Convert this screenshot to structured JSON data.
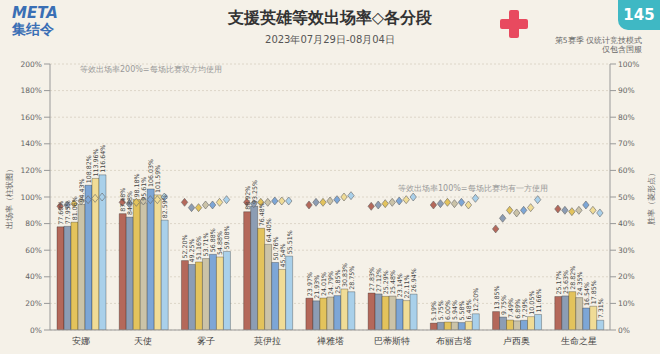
{
  "chart_data": {
    "type": "bar",
    "title": "支援英雄等效出场率◇各分段",
    "subtitle": "2023年07月29日-08月04日",
    "logo_text": [
      "META",
      "集结令"
    ],
    "issue": "145",
    "notes": [
      "第5赛季 仅统计竞技模式",
      "仅包含国服"
    ],
    "annotations": [
      "等效出场率200%=每场比赛双方均使用",
      "等效出场率100%=每场比赛均有一方使用"
    ],
    "y_label": "出场率（柱状图）",
    "y2_label": "胜率（菱形点）",
    "categories": [
      "安娜",
      "天使",
      "雾子",
      "莫伊拉",
      "禅雅塔",
      "巴蒂斯特",
      "布丽吉塔",
      "卢西奥",
      "生命之星"
    ],
    "ylim": [
      0,
      200
    ],
    "yticks": [
      {
        "value": 0,
        "label": "0%"
      },
      {
        "value": 20,
        "label": "20%"
      },
      {
        "value": 40,
        "label": "40%"
      },
      {
        "value": 60,
        "label": "60%"
      },
      {
        "value": 80,
        "label": "80%"
      },
      {
        "value": 100,
        "label": "100%"
      },
      {
        "value": 120,
        "label": "120%"
      },
      {
        "value": 140,
        "label": "140%"
      },
      {
        "value": 160,
        "label": "160%"
      },
      {
        "value": 180,
        "label": "180%"
      },
      {
        "value": 200,
        "label": "200%"
      }
    ],
    "y2lim": [
      0,
      100
    ],
    "y2ticks": [
      {
        "value": 0,
        "label": "0%"
      },
      {
        "value": 10,
        "label": "10%"
      },
      {
        "value": 20,
        "label": "20%"
      },
      {
        "value": 30,
        "label": "30%"
      },
      {
        "value": 40,
        "label": "40%"
      },
      {
        "value": 50,
        "label": "50%"
      },
      {
        "value": 60,
        "label": "60%"
      },
      {
        "value": 70,
        "label": "70%"
      },
      {
        "value": 80,
        "label": "80%"
      },
      {
        "value": 90,
        "label": "90%"
      },
      {
        "value": 100,
        "label": "100%"
      }
    ],
    "grid": true,
    "data_labels": true,
    "series": [
      {
        "type": "bar",
        "color": "#b4685a",
        "values": [
          77.6,
          87.48,
          52.2,
          88.92,
          23.97,
          27.83,
          5.19,
          13.85,
          25.17
        ],
        "value_labels": [
          "77.60%",
          "87.48%",
          "52.20%",
          "88.92%",
          "23.97%",
          "27.83%",
          "5.19%",
          "13.85%",
          "25.17%"
        ]
      },
      {
        "type": "bar",
        "color": "#8c9db4",
        "values": [
          77.95,
          84.88,
          49.25,
          93.25,
          21.93,
          27.12,
          5.75,
          9.75,
          25.63
        ],
        "value_labels": [
          "77.95%",
          "84.88%",
          "49.25%",
          "93.25%",
          "21.93%",
          "27.12%",
          "5.75%",
          "9.75%",
          "25.63%"
        ]
      },
      {
        "type": "bar",
        "color": "#e3c35c",
        "values": [
          81.06,
          98.18,
          51.16,
          76.48,
          24.01,
          25.29,
          6.0,
          7.49,
          28.82
        ],
        "value_labels": [
          "81.06%",
          "98.18%",
          "51.16%",
          "76.48%",
          "24.01%",
          "25.29%",
          "6.00%",
          "7.49%",
          "28.82%"
        ]
      },
      {
        "type": "bar",
        "color": "#cbc3a8",
        "values": [
          94.43,
          95.61,
          53.71,
          64.4,
          24.79,
          25.48,
          5.94,
          6.89,
          24.35
        ],
        "value_labels": [
          "94.43%",
          "95.61%",
          "53.71%",
          "64.40%",
          "24.79%",
          "25.48%",
          "5.94%",
          "6.89%",
          "24.35%"
        ]
      },
      {
        "type": "bar",
        "color": "#7da6d6",
        "values": [
          108.82,
          106.03,
          56.88,
          50.76,
          25.85,
          23.14,
          5.58,
          7.29,
          16.54
        ],
        "value_labels": [
          "108.82%",
          "106.03%",
          "56.88%",
          "50.76%",
          "25.85%",
          "23.14%",
          "5.58%",
          "7.29%",
          "16.54%"
        ]
      },
      {
        "type": "bar",
        "color": "#f0dc96",
        "values": [
          113.96,
          101.59,
          54.88,
          45.54,
          30.83,
          22.11,
          6.48,
          10.05,
          17.85
        ],
        "value_labels": [
          "113.96%",
          "101.59%",
          "54.88%",
          "45.54%",
          "30.83%",
          "22.11%",
          "6.48%",
          "10.05%",
          "17.85%"
        ]
      },
      {
        "type": "bar",
        "color": "#a9d0ea",
        "values": [
          116.64,
          82.59,
          59.08,
          55.51,
          28.75,
          26.94,
          12.2,
          11.66,
          7.31
        ],
        "value_labels": [
          "116.64%",
          "82.59%",
          "59.08%",
          "55.51%",
          "28.75%",
          "26.94%",
          "12.20%",
          "11.66%",
          "7.31%"
        ]
      },
      {
        "type": "scatter",
        "axis": "y2",
        "marker": "diamond",
        "color": "#b4685a",
        "values": [
          46.5,
          48,
          48,
          48,
          47,
          46.5,
          47,
          38,
          45.5
        ]
      },
      {
        "type": "scatter",
        "axis": "y2",
        "marker": "diamond",
        "color": "#8c9db4",
        "values": [
          47,
          47.5,
          46,
          47.5,
          48,
          47,
          47.5,
          42,
          45
        ]
      },
      {
        "type": "scatter",
        "axis": "y2",
        "marker": "diamond",
        "color": "#e3c35c",
        "values": [
          47.5,
          48,
          46,
          48,
          48,
          47.5,
          48,
          45,
          44.5
        ]
      },
      {
        "type": "scatter",
        "axis": "y2",
        "marker": "diamond",
        "color": "#cbc3a8",
        "values": [
          48.5,
          48.5,
          47,
          48,
          48.5,
          48,
          47.5,
          44,
          45
        ]
      },
      {
        "type": "scatter",
        "axis": "y2",
        "marker": "diamond",
        "color": "#7da6d6",
        "values": [
          49,
          49,
          47,
          48.5,
          49,
          48.5,
          48,
          45,
          47
        ]
      },
      {
        "type": "scatter",
        "axis": "y2",
        "marker": "diamond",
        "color": "#f0dc96",
        "values": [
          49.5,
          49,
          48,
          48.5,
          50,
          49,
          47,
          46,
          45
        ]
      },
      {
        "type": "scatter",
        "axis": "y2",
        "marker": "diamond",
        "color": "#a9d0ea",
        "values": [
          50,
          50,
          49,
          48.5,
          50.5,
          50,
          49.5,
          49,
          44
        ]
      }
    ]
  }
}
